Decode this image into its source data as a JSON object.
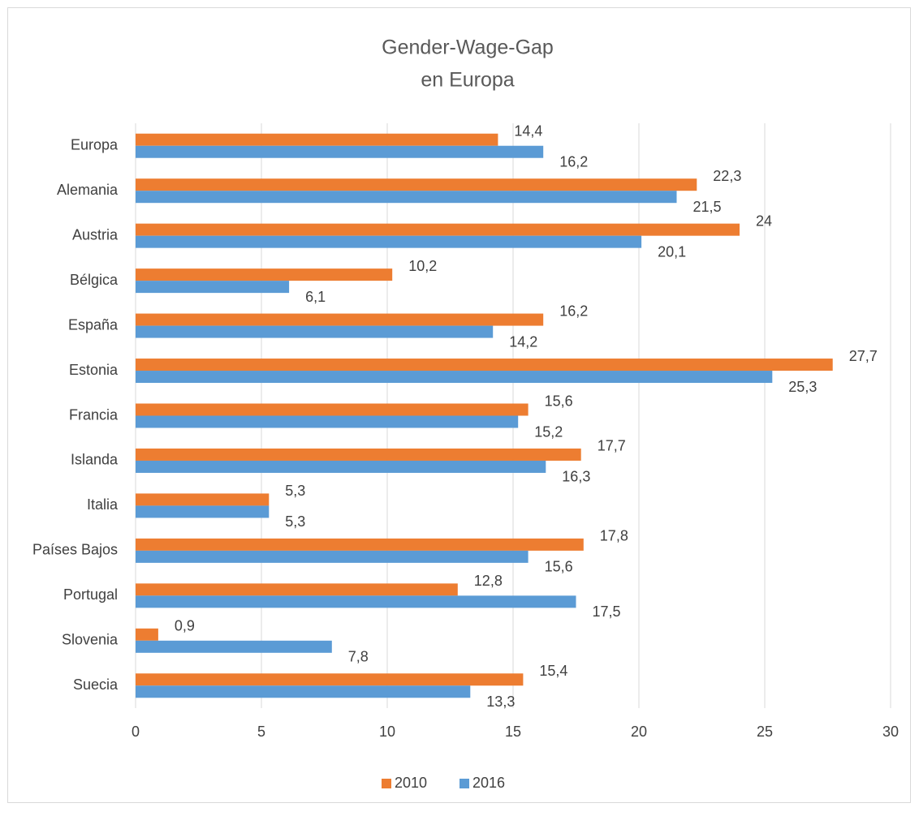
{
  "chart_data": {
    "type": "bar",
    "orientation": "horizontal",
    "title": "Gender-Wage-Gap",
    "subtitle": "en Europa",
    "categories": [
      "Europa",
      "Alemania",
      "Austria",
      "Bélgica",
      "España",
      "Estonia",
      "Francia",
      "Islanda",
      "Italia",
      "Países Bajos",
      "Portugal",
      "Slovenia",
      "Suecia"
    ],
    "series": [
      {
        "name": "2010",
        "color": "#ed7d31",
        "values": [
          14.4,
          22.3,
          24,
          10.2,
          16.2,
          27.7,
          15.6,
          17.7,
          5.3,
          17.8,
          12.8,
          0.9,
          15.4
        ],
        "value_labels": [
          "14,4",
          "22,3",
          "24",
          "10,2",
          "16,2",
          "27,7",
          "15,6",
          "17,7",
          "5,3",
          "17,8",
          "12,8",
          "0,9",
          "15,4"
        ]
      },
      {
        "name": "2016",
        "color": "#5b9bd5",
        "values": [
          16.2,
          21.5,
          20.1,
          6.1,
          14.2,
          25.3,
          15.2,
          16.3,
          5.3,
          15.6,
          17.5,
          7.8,
          13.3
        ],
        "value_labels": [
          "16,2",
          "21,5",
          "20,1",
          "6,1",
          "14,2",
          "25,3",
          "15,2",
          "16,3",
          "5,3",
          "15,6",
          "17,5",
          "7,8",
          "13,3"
        ]
      }
    ],
    "xlim": [
      0,
      30
    ],
    "xticks": [
      0,
      5,
      10,
      15,
      20,
      25,
      30
    ],
    "grid": true,
    "legend": "bottom"
  }
}
